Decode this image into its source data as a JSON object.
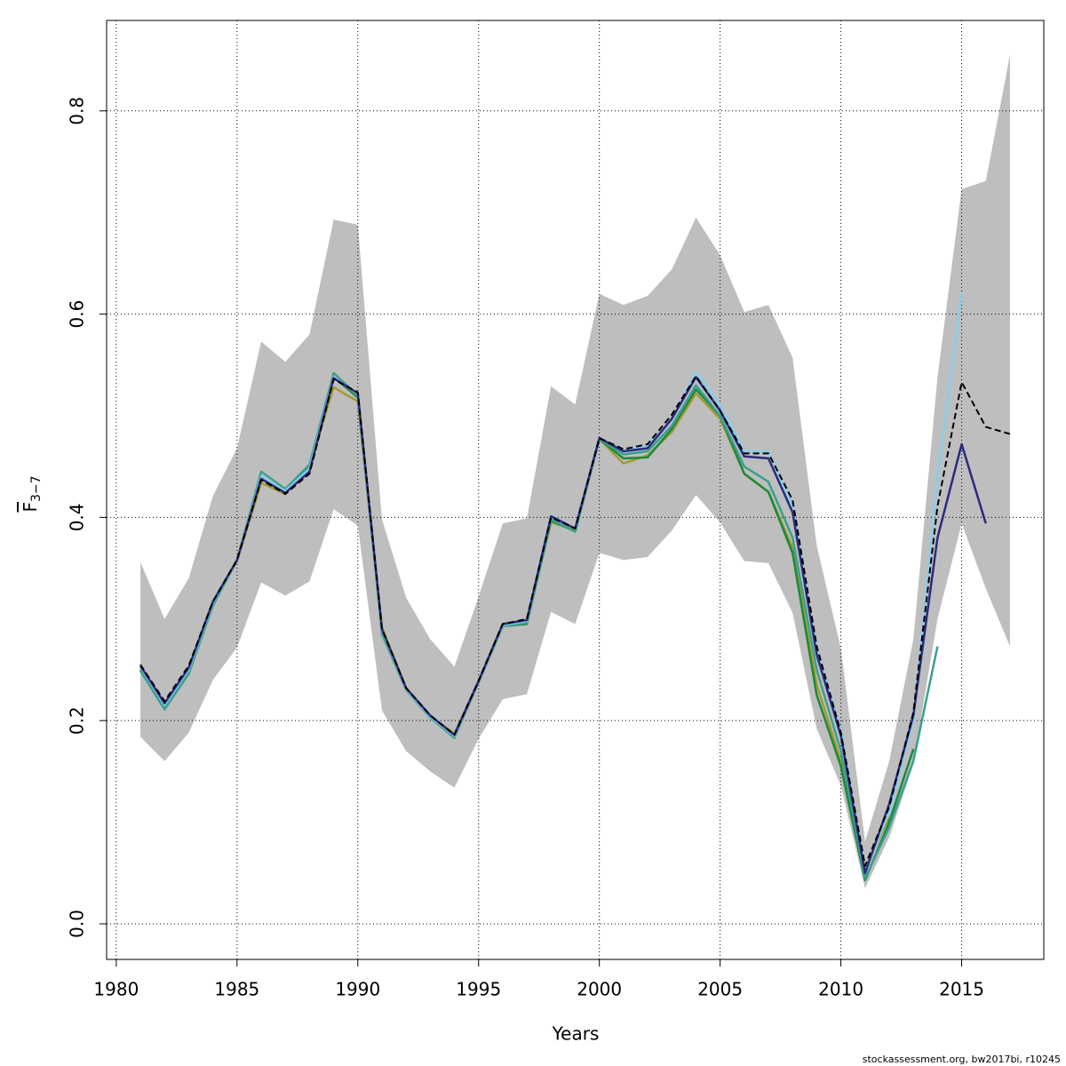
{
  "chart_data": {
    "type": "line",
    "xlabel": "Years",
    "ylabel": "F",
    "ylabel_subscript": "3−7",
    "footer": "stockassessment.org, bw2017bi, r10245",
    "x": [
      1981,
      1982,
      1983,
      1984,
      1985,
      1986,
      1987,
      1988,
      1989,
      1990,
      1991,
      1992,
      1993,
      1994,
      1995,
      1996,
      1997,
      1998,
      1999,
      2000,
      2001,
      2002,
      2003,
      2004,
      2005,
      2006,
      2007,
      2008,
      2009,
      2010,
      2011,
      2012,
      2013,
      2014,
      2015,
      2016,
      2017
    ],
    "band": {
      "color": "#bebebe",
      "upper": [
        0.356,
        0.3,
        0.34,
        0.421,
        0.468,
        0.573,
        0.553,
        0.58,
        0.693,
        0.688,
        0.398,
        0.321,
        0.28,
        0.253,
        0.322,
        0.394,
        0.399,
        0.529,
        0.511,
        0.62,
        0.609,
        0.618,
        0.644,
        0.695,
        0.658,
        0.602,
        0.609,
        0.557,
        0.372,
        0.271,
        0.081,
        0.16,
        0.28,
        0.538,
        0.723,
        0.731,
        0.855
      ],
      "lower": [
        0.184,
        0.16,
        0.188,
        0.24,
        0.272,
        0.336,
        0.323,
        0.337,
        0.408,
        0.392,
        0.21,
        0.17,
        0.15,
        0.134,
        0.182,
        0.221,
        0.226,
        0.307,
        0.295,
        0.365,
        0.358,
        0.361,
        0.387,
        0.422,
        0.395,
        0.357,
        0.355,
        0.306,
        0.192,
        0.136,
        0.035,
        0.085,
        0.157,
        0.3,
        0.394,
        0.33,
        0.273
      ]
    },
    "series": [
      {
        "color": "#a39a2b",
        "values": [
          0.252,
          0.216,
          0.25,
          0.316,
          0.357,
          0.434,
          0.423,
          0.45,
          0.528,
          0.514,
          0.292,
          0.232,
          0.204,
          0.187,
          0.238,
          0.293,
          0.298,
          0.395,
          0.388,
          0.477,
          0.453,
          0.461,
          0.484,
          0.522,
          0.497,
          0.443,
          0.425,
          0.37,
          0.235,
          0.16,
          0.055,
          0.105,
          null,
          null,
          null,
          null,
          null
        ]
      },
      {
        "color": "#1a8a3a",
        "values": [
          0.25,
          0.212,
          0.247,
          0.314,
          0.358,
          0.44,
          0.425,
          0.451,
          0.538,
          0.518,
          0.288,
          0.231,
          0.203,
          0.184,
          0.238,
          0.293,
          0.295,
          0.397,
          0.386,
          0.477,
          0.458,
          0.459,
          0.487,
          0.526,
          0.5,
          0.443,
          0.425,
          0.365,
          0.225,
          0.155,
          0.043,
          0.1,
          0.172,
          null,
          null,
          null,
          null
        ]
      },
      {
        "color": "#3aa08f",
        "values": [
          0.249,
          0.211,
          0.246,
          0.313,
          0.358,
          0.445,
          0.428,
          0.452,
          0.542,
          0.52,
          0.285,
          0.23,
          0.203,
          0.183,
          0.238,
          0.293,
          0.296,
          0.398,
          0.386,
          0.477,
          0.462,
          0.465,
          0.49,
          0.53,
          0.5,
          0.45,
          0.435,
          0.38,
          0.25,
          0.17,
          0.045,
          0.095,
          0.16,
          0.273,
          null,
          null,
          null
        ]
      },
      {
        "color": "#87ceeb",
        "values": [
          0.253,
          0.215,
          0.25,
          0.316,
          0.358,
          0.44,
          0.426,
          0.448,
          0.538,
          0.521,
          0.289,
          0.231,
          0.204,
          0.185,
          0.239,
          0.294,
          0.298,
          0.402,
          0.389,
          0.478,
          0.466,
          0.47,
          0.496,
          0.543,
          0.51,
          0.465,
          0.465,
          0.41,
          0.27,
          0.19,
          0.052,
          0.11,
          0.2,
          0.44,
          0.62,
          null,
          null
        ]
      },
      {
        "color": "#2b2a7e",
        "values": [
          0.254,
          0.217,
          0.252,
          0.317,
          0.358,
          0.438,
          0.424,
          0.445,
          0.537,
          0.522,
          0.29,
          0.232,
          0.205,
          0.186,
          0.239,
          0.295,
          0.299,
          0.401,
          0.389,
          0.478,
          0.465,
          0.468,
          0.497,
          0.538,
          0.505,
          0.46,
          0.458,
          0.405,
          0.265,
          0.185,
          0.05,
          0.118,
          0.205,
          0.38,
          0.472,
          0.394,
          null
        ]
      },
      {
        "color": "#000000",
        "dashed": true,
        "values": [
          0.255,
          0.219,
          0.254,
          0.317,
          0.358,
          0.437,
          0.423,
          0.443,
          0.536,
          0.523,
          0.29,
          0.232,
          0.205,
          0.186,
          0.239,
          0.295,
          0.3,
          0.4,
          0.389,
          0.478,
          0.467,
          0.472,
          0.501,
          0.539,
          0.505,
          0.463,
          0.463,
          0.417,
          0.273,
          0.188,
          0.057,
          0.115,
          0.208,
          0.411,
          0.533,
          0.489,
          0.482
        ]
      }
    ],
    "xlim": [
      1979.6,
      2018.4
    ],
    "ylim": [
      -0.035,
      0.889
    ],
    "xticks": [
      1980,
      1985,
      1990,
      1995,
      2000,
      2005,
      2010,
      2015
    ],
    "yticks": [
      {
        "value": 0,
        "label": "0.0"
      },
      0.2,
      0.4,
      0.6,
      0.8
    ],
    "grid": true
  }
}
